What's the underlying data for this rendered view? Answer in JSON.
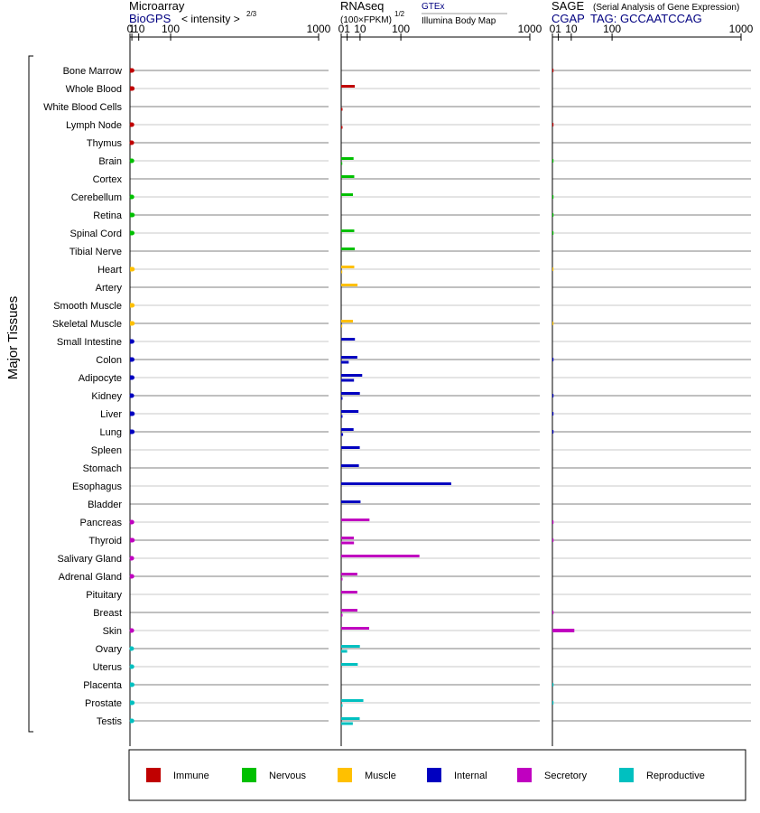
{
  "chart_data": {
    "type": "bar",
    "y_group_label": "Major Tissues",
    "tissues": [
      "Bone Marrow",
      "Whole Blood",
      "White Blood Cells",
      "Lymph Node",
      "Thymus",
      "Brain",
      "Cortex",
      "Cerebellum",
      "Retina",
      "Spinal Cord",
      "Tibial Nerve",
      "Heart",
      "Artery",
      "Smooth Muscle",
      "Skeletal Muscle",
      "Small Intestine",
      "Colon",
      "Adipocyte",
      "Kidney",
      "Liver",
      "Lung",
      "Spleen",
      "Stomach",
      "Esophagus",
      "Bladder",
      "Pancreas",
      "Thyroid",
      "Salivary Gland",
      "Adrenal Gland",
      "Pituitary",
      "Breast",
      "Skin",
      "Ovary",
      "Uterus",
      "Placenta",
      "Prostate",
      "Testis"
    ],
    "tissue_group": [
      "Immune",
      "Immune",
      "Immune",
      "Immune",
      "Immune",
      "Nervous",
      "Nervous",
      "Nervous",
      "Nervous",
      "Nervous",
      "Nervous",
      "Muscle",
      "Muscle",
      "Muscle",
      "Muscle",
      "Internal",
      "Internal",
      "Internal",
      "Internal",
      "Internal",
      "Internal",
      "Internal",
      "Internal",
      "Internal",
      "Internal",
      "Secretory",
      "Secretory",
      "Secretory",
      "Secretory",
      "Secretory",
      "Secretory",
      "Secretory",
      "Reproductive",
      "Reproductive",
      "Reproductive",
      "Reproductive",
      "Reproductive"
    ],
    "panels": [
      {
        "title": "Microarray",
        "subtitle_link": "BioGPS",
        "scale_label": "< intensity >",
        "scale_exponent": "2/3",
        "ticks": [
          "0",
          "1",
          "10",
          "100",
          "1000"
        ],
        "xlim": [
          0,
          1000
        ],
        "series": [
          {
            "name": "BioGPS",
            "values": [
              1.2,
              1.4,
              null,
              1.1,
              1.0,
              1.1,
              null,
              1.1,
              1.5,
              1.3,
              null,
              1.5,
              null,
              1.4,
              1.5,
              1.2,
              1.3,
              1.3,
              1.0,
              1.5,
              1.4,
              null,
              null,
              null,
              null,
              1.1,
              1.5,
              1.0,
              1.1,
              null,
              null,
              1.0,
              0.9,
              1.1,
              1.3,
              1.4,
              1.1
            ]
          }
        ]
      },
      {
        "title": "RNAseq",
        "scale_label": "(100×FPKM)",
        "scale_exponent": "1/2",
        "legend_top": "GTEx",
        "legend_bottom": "Illumina Body Map",
        "ticks": [
          "0",
          "1",
          "10",
          "100",
          "1000"
        ],
        "xlim": [
          0,
          1000
        ],
        "series": [
          {
            "name": "GTEx",
            "values": [
              null,
              5.2,
              null,
              null,
              null,
              4.3,
              4.8,
              3.9,
              null,
              4.8,
              5.2,
              4.8,
              7.5,
              null,
              3.9,
              5.3,
              7.3,
              12.4,
              9.8,
              8.4,
              4.3,
              9.7,
              8.8,
              340,
              10.5,
              22.5,
              4.5,
              172,
              7.3,
              7.3,
              7.4,
              22.0,
              9.8,
              7.7,
              null,
              13.8,
              9.6
            ]
          },
          {
            "name": "Illumina Body Map",
            "values": [
              null,
              null,
              0.05,
              0.05,
              null,
              0.03,
              null,
              null,
              null,
              null,
              null,
              0.03,
              null,
              null,
              0.03,
              null,
              1.6,
              4.6,
              0.05,
              0.05,
              0.1,
              null,
              null,
              null,
              null,
              null,
              4.6,
              null,
              0.05,
              null,
              0.05,
              null,
              1.0,
              null,
              null,
              0.05,
              3.8
            ]
          }
        ]
      },
      {
        "title": "SAGE",
        "note": "(Serial Analysis of Gene Expression)",
        "subtitle_link": "CGAP",
        "tag_label": "TAG: GCCAATCCAG",
        "ticks": [
          "0",
          "1",
          "10",
          "100",
          "1000"
        ],
        "xlim": [
          0,
          1000
        ],
        "series": [
          {
            "name": "CGAP SAGE",
            "values": [
              0.03,
              null,
              null,
              0.03,
              null,
              0.02,
              null,
              0.02,
              0.02,
              0.02,
              null,
              0.02,
              null,
              null,
              0.02,
              null,
              0.03,
              null,
              0.03,
              0.03,
              0.03,
              null,
              null,
              null,
              null,
              0.03,
              0.03,
              null,
              null,
              null,
              0.03,
              13.5,
              null,
              null,
              0.02,
              0.02,
              null
            ]
          }
        ]
      }
    ],
    "groups": [
      {
        "name": "Immune",
        "color": "#c00000"
      },
      {
        "name": "Nervous",
        "color": "#00c000"
      },
      {
        "name": "Muscle",
        "color": "#ffc000"
      },
      {
        "name": "Internal",
        "color": "#0000c0"
      },
      {
        "name": "Secretory",
        "color": "#c000c0"
      },
      {
        "name": "Reproductive",
        "color": "#00c0c0"
      }
    ],
    "legend_position": "bottom",
    "grid": true
  }
}
